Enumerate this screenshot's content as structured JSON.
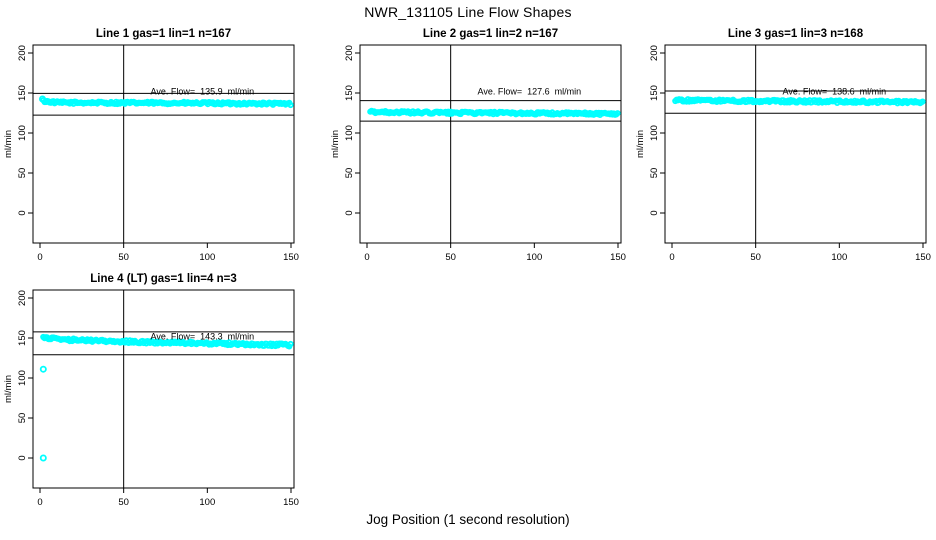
{
  "title": "NWR_131105  Line Flow Shapes",
  "xlabel": "Jog Position (1 second resolution)",
  "colors": {
    "points": "#00ffff",
    "axis": "#000000",
    "background": "#ffffff",
    "text": "#000000"
  },
  "chart_data": [
    {
      "type": "scatter",
      "title": "Line 1 gas=1 lin=1 n=167",
      "n_points": 167,
      "ave_flow_ml_min": 135.9,
      "annotation": "Ave. Flow=  135.9  ml/min",
      "ylabel": "ml/min",
      "xlim": [
        0,
        150
      ],
      "ylim": [
        0,
        200
      ],
      "xticks": [
        0,
        50,
        100,
        150
      ],
      "yticks": [
        0,
        50,
        100,
        150,
        200
      ],
      "vline_x": 50,
      "hlines": [
        149.5,
        122.3
      ],
      "band": {
        "x_start": 2,
        "x_end": 150,
        "step": 0.75,
        "jitter": 1.5,
        "profile": [
          [
            2,
            140
          ],
          [
            10,
            138
          ],
          [
            75,
            137.5
          ],
          [
            150,
            136.5
          ]
        ]
      },
      "outliers": [
        [
          1.5,
          142.5
        ]
      ]
    },
    {
      "type": "scatter",
      "title": "Line 2 gas=1 lin=2 n=167",
      "n_points": 167,
      "ave_flow_ml_min": 127.6,
      "annotation": "Ave. Flow=  127.6  ml/min",
      "ylabel": "ml/min",
      "xlim": [
        0,
        150
      ],
      "ylim": [
        0,
        200
      ],
      "xticks": [
        0,
        50,
        100,
        150
      ],
      "yticks": [
        0,
        50,
        100,
        150,
        200
      ],
      "vline_x": 50,
      "hlines": [
        140.4,
        114.8
      ],
      "band": {
        "x_start": 2,
        "x_end": 150,
        "step": 0.75,
        "jitter": 1.5,
        "profile": [
          [
            2,
            126.5
          ],
          [
            30,
            125.5
          ],
          [
            150,
            124
          ]
        ]
      },
      "outliers": []
    },
    {
      "type": "scatter",
      "title": "Line 3 gas=1 lin=3 n=168",
      "n_points": 168,
      "ave_flow_ml_min": 138.6,
      "annotation": "Ave. Flow=  138.6  ml/min",
      "ylabel": "ml/min",
      "xlim": [
        0,
        150
      ],
      "ylim": [
        0,
        200
      ],
      "xticks": [
        0,
        50,
        100,
        150
      ],
      "yticks": [
        0,
        50,
        100,
        150,
        200
      ],
      "vline_x": 50,
      "hlines": [
        152.5,
        124.7
      ],
      "band": {
        "x_start": 2,
        "x_end": 150,
        "step": 0.75,
        "jitter": 1.6,
        "profile": [
          [
            2,
            141
          ],
          [
            40,
            140
          ],
          [
            150,
            138.5
          ]
        ]
      },
      "outliers": []
    },
    {
      "type": "scatter",
      "title": "Line 4 (LT) gas=1 lin=4 n=3",
      "n_points": 3,
      "ave_flow_ml_min": 143.3,
      "annotation": "Ave. Flow=  143.3  ml/min",
      "ylabel": "ml/min",
      "xlim": [
        0,
        150
      ],
      "ylim": [
        0,
        200
      ],
      "xticks": [
        0,
        50,
        100,
        150
      ],
      "yticks": [
        0,
        50,
        100,
        150,
        200
      ],
      "vline_x": 50,
      "hlines": [
        157.6,
        129.0
      ],
      "band": {
        "x_start": 2,
        "x_end": 150,
        "step": 0.75,
        "jitter": 1.7,
        "profile": [
          [
            2,
            150
          ],
          [
            15,
            148
          ],
          [
            50,
            145.5
          ],
          [
            100,
            143.5
          ],
          [
            150,
            141
          ]
        ]
      },
      "outliers": [
        [
          2,
          111
        ],
        [
          2,
          0
        ]
      ]
    }
  ]
}
